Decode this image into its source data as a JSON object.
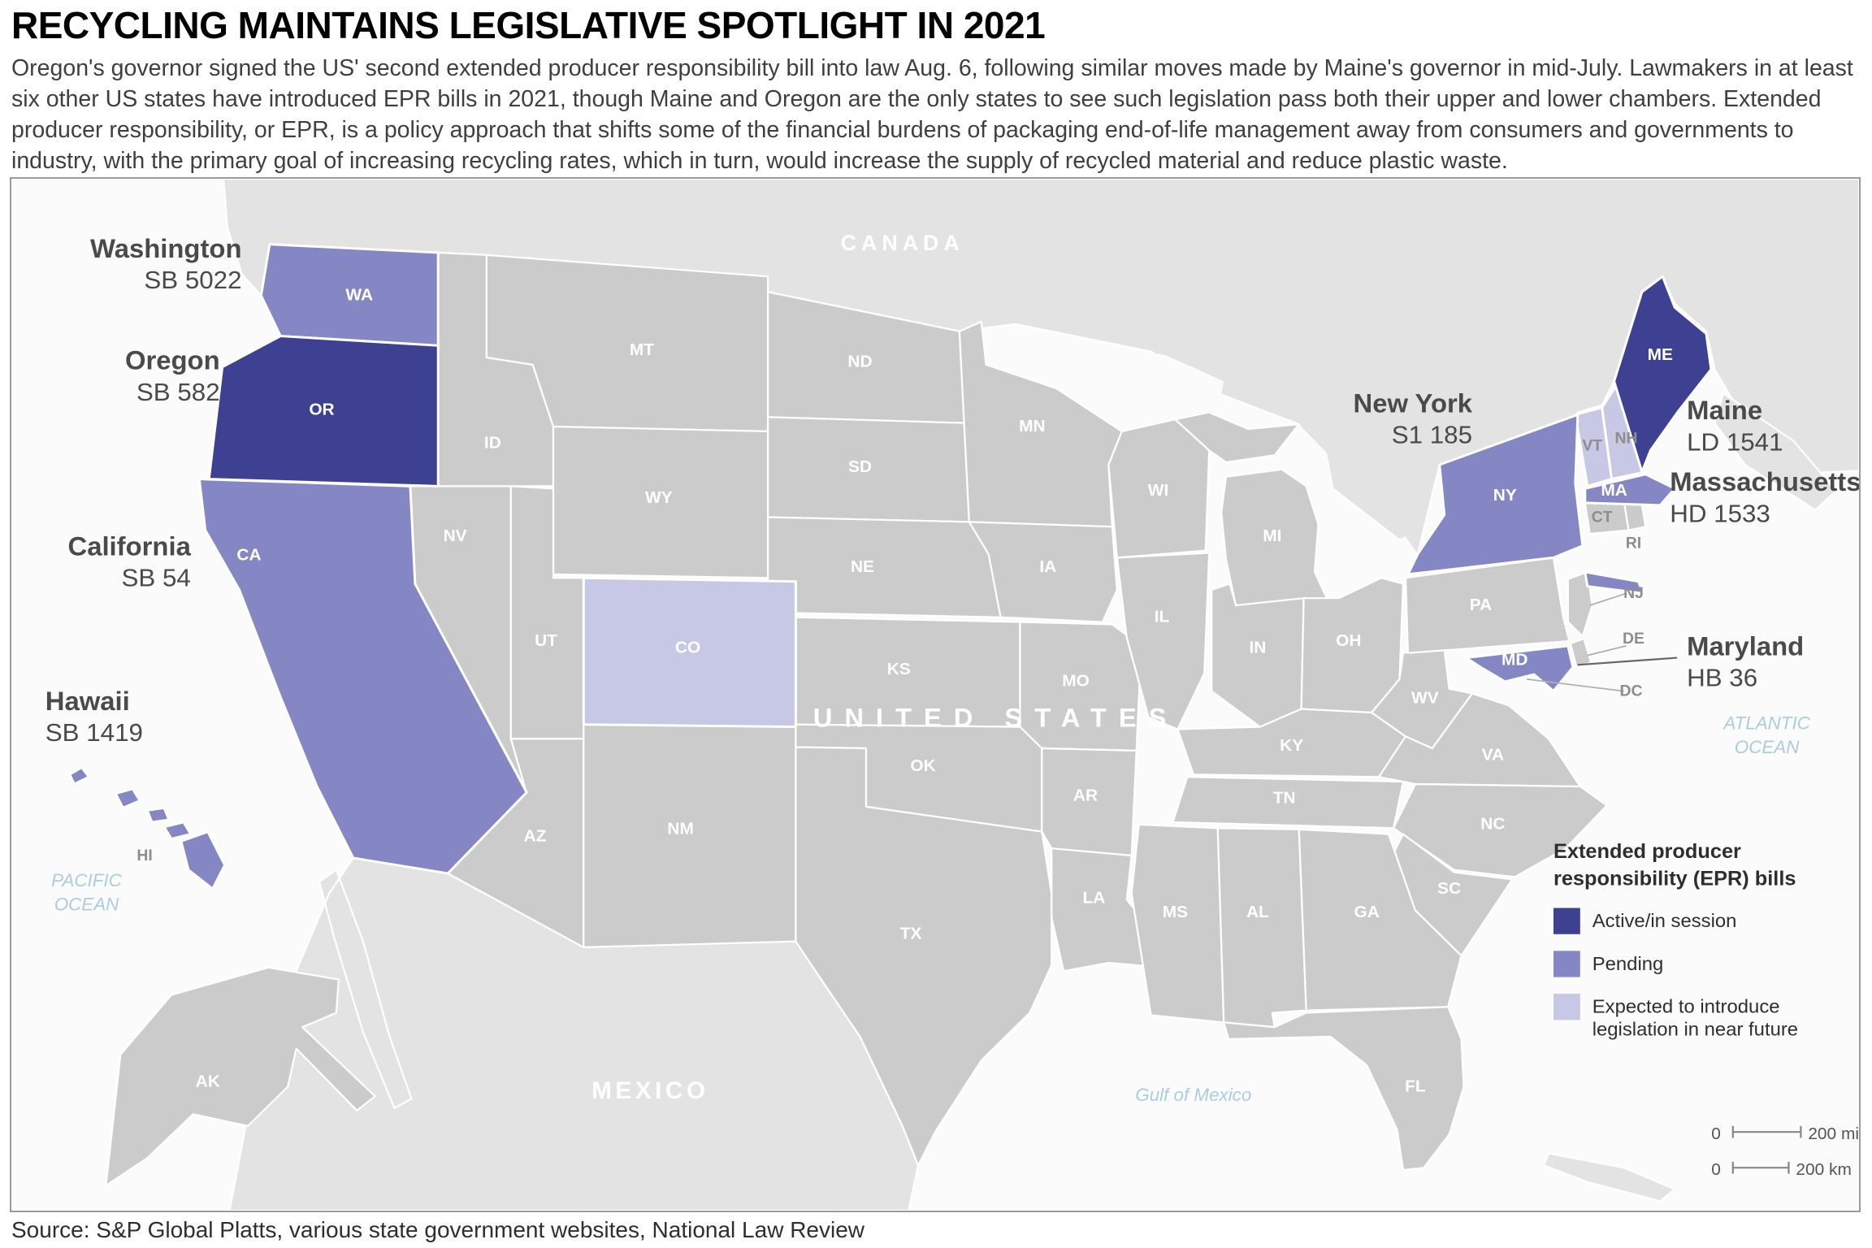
{
  "header": {
    "title": "RECYCLING MAINTAINS LEGISLATIVE SPOTLIGHT IN 2021",
    "intro": "Oregon's governor signed the US' second extended producer responsibility bill into law Aug. 6, following similar moves made by Maine's governor in mid-July. Lawmakers in at least six other US states have introduced EPR bills in 2021, though Maine and Oregon are the only states to see such legislation pass both their upper and lower chambers. Extended producer responsibility, or EPR, is a policy approach that shifts some of the financial burdens of packaging end-of-life management away from consumers and governments to industry, with the primary goal of increasing recycling rates, which in turn, would increase the supply of recycled material and reduce plastic waste."
  },
  "map": {
    "status_colors": {
      "active": "#3e4191",
      "pending": "#8587c4",
      "expected": "#c7c8e5",
      "none": "#cbcbcb"
    },
    "country_labels": {
      "canada": "CANADA",
      "mexico": "MEXICO",
      "united_states": "UNITED STATES"
    },
    "ocean_labels": {
      "pacific": [
        "PACIFIC",
        "OCEAN"
      ],
      "atlantic": [
        "ATLANTIC",
        "OCEAN"
      ],
      "gulf": "Gulf of Mexico"
    },
    "states": [
      {
        "abbr": "WA",
        "status": "pending"
      },
      {
        "abbr": "OR",
        "status": "active"
      },
      {
        "abbr": "CA",
        "status": "pending"
      },
      {
        "abbr": "NV",
        "status": "none"
      },
      {
        "abbr": "ID",
        "status": "none"
      },
      {
        "abbr": "MT",
        "status": "none"
      },
      {
        "abbr": "WY",
        "status": "none"
      },
      {
        "abbr": "UT",
        "status": "none"
      },
      {
        "abbr": "CO",
        "status": "expected"
      },
      {
        "abbr": "AZ",
        "status": "none"
      },
      {
        "abbr": "NM",
        "status": "none"
      },
      {
        "abbr": "ND",
        "status": "none"
      },
      {
        "abbr": "SD",
        "status": "none"
      },
      {
        "abbr": "NE",
        "status": "none"
      },
      {
        "abbr": "KS",
        "status": "none"
      },
      {
        "abbr": "OK",
        "status": "none"
      },
      {
        "abbr": "TX",
        "status": "none"
      },
      {
        "abbr": "MN",
        "status": "none"
      },
      {
        "abbr": "IA",
        "status": "none"
      },
      {
        "abbr": "MO",
        "status": "none"
      },
      {
        "abbr": "AR",
        "status": "none"
      },
      {
        "abbr": "LA",
        "status": "none"
      },
      {
        "abbr": "WI",
        "status": "none"
      },
      {
        "abbr": "IL",
        "status": "none"
      },
      {
        "abbr": "MI",
        "status": "none"
      },
      {
        "abbr": "IN",
        "status": "none"
      },
      {
        "abbr": "OH",
        "status": "none"
      },
      {
        "abbr": "KY",
        "status": "none"
      },
      {
        "abbr": "TN",
        "status": "none"
      },
      {
        "abbr": "WV",
        "status": "none"
      },
      {
        "abbr": "VA",
        "status": "none"
      },
      {
        "abbr": "NC",
        "status": "none"
      },
      {
        "abbr": "SC",
        "status": "none"
      },
      {
        "abbr": "GA",
        "status": "none"
      },
      {
        "abbr": "AL",
        "status": "none"
      },
      {
        "abbr": "MS",
        "status": "none"
      },
      {
        "abbr": "FL",
        "status": "none"
      },
      {
        "abbr": "PA",
        "status": "none"
      },
      {
        "abbr": "NY",
        "status": "pending"
      },
      {
        "abbr": "NJ",
        "status": "none"
      },
      {
        "abbr": "DE",
        "status": "none"
      },
      {
        "abbr": "MD",
        "status": "pending"
      },
      {
        "abbr": "DC",
        "status": "none"
      },
      {
        "abbr": "VT",
        "status": "expected"
      },
      {
        "abbr": "NH",
        "status": "expected"
      },
      {
        "abbr": "ME",
        "status": "active"
      },
      {
        "abbr": "MA",
        "status": "pending"
      },
      {
        "abbr": "CT",
        "status": "none"
      },
      {
        "abbr": "RI",
        "status": "none"
      },
      {
        "abbr": "AK",
        "status": "none"
      },
      {
        "abbr": "HI",
        "status": "pending"
      }
    ],
    "callouts": [
      {
        "state": "WA",
        "name": "Washington",
        "bill": "SB 5022"
      },
      {
        "state": "OR",
        "name": "Oregon",
        "bill": "SB 582"
      },
      {
        "state": "CA",
        "name": "California",
        "bill": "SB 54"
      },
      {
        "state": "HI",
        "name": "Hawaii",
        "bill": "SB 1419"
      },
      {
        "state": "NY",
        "name": "New York",
        "bill": "S1 185"
      },
      {
        "state": "ME",
        "name": "Maine",
        "bill": "LD 1541"
      },
      {
        "state": "MA",
        "name": "Massachusetts",
        "bill": "HD 1533"
      },
      {
        "state": "MD",
        "name": "Maryland",
        "bill": "HB 36"
      }
    ],
    "legend": {
      "title_lines": [
        "Extended producer",
        "responsibility (EPR) bills"
      ],
      "items": [
        {
          "status": "active",
          "lines": [
            "Active/in session"
          ]
        },
        {
          "status": "pending",
          "lines": [
            "Pending"
          ]
        },
        {
          "status": "expected",
          "lines": [
            "Expected to introduce",
            "legislation in near future"
          ]
        }
      ]
    },
    "scale": {
      "zero": "0",
      "mi": "200 mi",
      "km": "200 km"
    }
  },
  "footer": {
    "source": "Source: S&P Global Platts, various state government websites, National Law Review"
  }
}
